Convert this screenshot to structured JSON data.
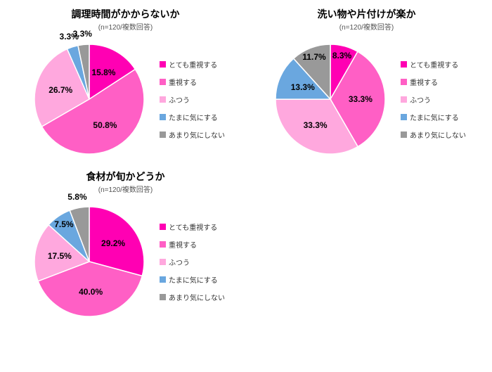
{
  "legend_labels": [
    "とても重視する",
    "重視する",
    "ふつう",
    "たまに気にする",
    "あまり気にしない"
  ],
  "colors": [
    "#ff00b3",
    "#ff5fc5",
    "#ffa8de",
    "#6aa7df",
    "#999999"
  ],
  "stroke_color": "#ffffff",
  "stroke_width": 1.5,
  "title_fontsize": 14,
  "subtitle_fontsize": 10,
  "label_fontsize": 12,
  "legend_fontsize": 10,
  "charts": [
    {
      "title": "調理時間がかからないか",
      "subtitle": "(n=120/複数回答)",
      "slices": [
        {
          "value": 15.8,
          "label": "15.8%"
        },
        {
          "value": 50.8,
          "label": "50.8%"
        },
        {
          "value": 26.7,
          "label": "26.7%"
        },
        {
          "value": 3.3,
          "label": "3.3%"
        },
        {
          "value": 3.3,
          "label": "3.3%"
        }
      ]
    },
    {
      "title": "洗い物や片付けが楽か",
      "subtitle": "(n=120/複数回答)",
      "slices": [
        {
          "value": 8.3,
          "label": "8.3%"
        },
        {
          "value": 33.3,
          "label": "33.3%"
        },
        {
          "value": 33.3,
          "label": "33.3%"
        },
        {
          "value": 13.3,
          "label": "13.3%"
        },
        {
          "value": 11.7,
          "label": "11.7%"
        }
      ]
    },
    {
      "title": "食材が旬かどうか",
      "subtitle": "(n=120/複数回答)",
      "slices": [
        {
          "value": 29.2,
          "label": "29.2%"
        },
        {
          "value": 40.0,
          "label": "40.0%"
        },
        {
          "value": 17.5,
          "label": "17.5%"
        },
        {
          "value": 7.5,
          "label": "7.5%"
        },
        {
          "value": 5.8,
          "label": "5.8%"
        }
      ]
    }
  ]
}
